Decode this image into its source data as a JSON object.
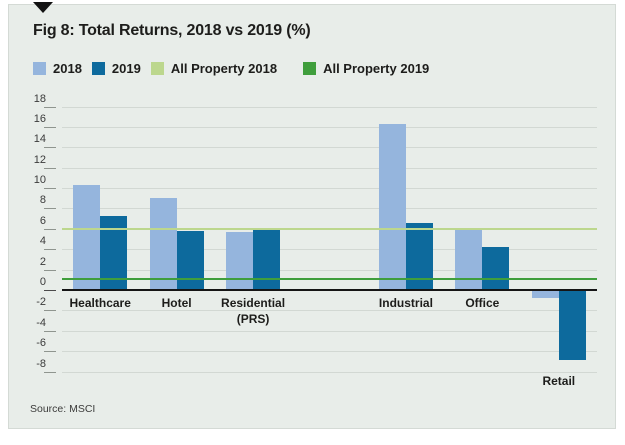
{
  "figure": {
    "title": "Fig 8: Total Returns, 2018 vs 2019 (%)",
    "source": "Source: MSCI"
  },
  "colors": {
    "panel_background": "#e8ede9",
    "bar_2018": "#95b5dd",
    "bar_2019": "#0d6a9d",
    "all_property_2018_line": "#bcd78d",
    "all_property_2019_line": "#3f9e3c",
    "gridline": "#d2d8d3",
    "zero_axis": "#151515",
    "title_text": "#1d1d1b"
  },
  "chart_data": {
    "type": "bar",
    "title": "Fig 8: Total Returns, 2018 vs 2019 (%)",
    "xlabel": "",
    "ylabel": "",
    "ylim": [
      -8,
      18
    ],
    "ytick_step": 2,
    "grid": true,
    "legend_position": "top",
    "categories": [
      "Healthcare",
      "Hotel",
      "Residential (PRS)",
      "Industrial",
      "Office",
      "Retail"
    ],
    "category_slots": 7,
    "category_slot_index": [
      0,
      1,
      2,
      4,
      5,
      6
    ],
    "series": [
      {
        "name": "2018",
        "color": "#95b5dd",
        "values": [
          10.3,
          9.0,
          5.7,
          16.3,
          5.9,
          -0.8
        ]
      },
      {
        "name": "2019",
        "color": "#0d6a9d",
        "values": [
          7.3,
          5.8,
          5.9,
          6.6,
          4.2,
          -6.9
        ]
      }
    ],
    "reference_lines": [
      {
        "name": "All Property 2018",
        "value": 6.0,
        "color": "#bcd78d"
      },
      {
        "name": "All Property 2019",
        "value": 1.1,
        "color": "#3f9e3c"
      }
    ],
    "legend": [
      {
        "label": "2018",
        "color": "#95b5dd"
      },
      {
        "label": "2019",
        "color": "#0d6a9d"
      },
      {
        "label": "All Property 2018",
        "color": "#bcd78d"
      },
      {
        "label": "All Property 2019",
        "color": "#3f9e3c"
      }
    ],
    "source": "Source: MSCI"
  }
}
